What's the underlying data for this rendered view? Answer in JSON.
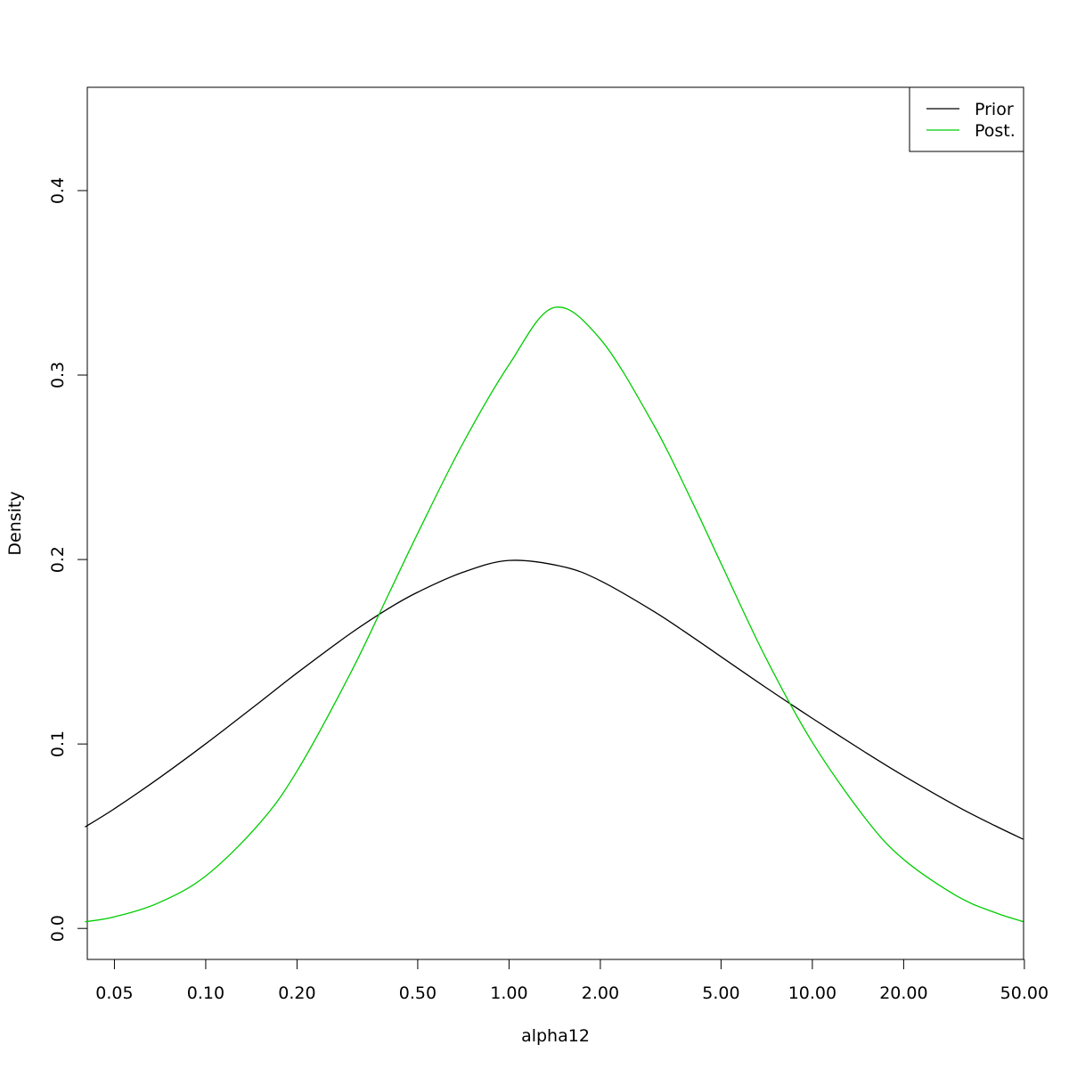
{
  "chart_data": {
    "type": "line",
    "title": "",
    "xlabel": "alpha12",
    "ylabel": "Density",
    "x_scale": "log",
    "xlim": [
      0.0407,
      49.7
    ],
    "ylim": [
      0,
      0.456
    ],
    "x_ticks": [
      0.05,
      0.1,
      0.2,
      0.5,
      1,
      2,
      5,
      10,
      20,
      50
    ],
    "x_tick_labels": [
      "0.05",
      "0.10",
      "0.20",
      "0.50",
      "1.00",
      "2.00",
      "5.00",
      "10.00",
      "20.00",
      "50.00"
    ],
    "y_ticks": [
      0,
      0.1,
      0.2,
      0.3,
      0.4
    ],
    "y_tick_labels": [
      "0.0",
      "0.1",
      "0.2",
      "0.3",
      "0.4"
    ],
    "grid": false,
    "legend_position": "top-right",
    "series": [
      {
        "name": "Prior",
        "color": "#000000",
        "x": [
          0.04,
          0.05,
          0.07,
          0.1,
          0.15,
          0.2,
          0.3,
          0.4,
          0.5,
          0.7,
          1,
          1.5,
          2,
          3,
          4,
          5,
          7,
          10,
          15,
          20,
          30,
          40,
          49.5
        ],
        "y": [
          0.055,
          0.0649,
          0.0814,
          0.1001,
          0.1224,
          0.1385,
          0.1599,
          0.1734,
          0.1823,
          0.1929,
          0.1995,
          0.1962,
          0.1885,
          0.1719,
          0.1583,
          0.1473,
          0.1308,
          0.1139,
          0.0953,
          0.0827,
          0.0662,
          0.0557,
          0.0484
        ]
      },
      {
        "name": "Post.",
        "color": "#00cd00",
        "x": [
          0.04,
          0.05,
          0.07,
          0.1,
          0.15,
          0.2,
          0.3,
          0.4,
          0.5,
          0.7,
          1,
          1.4,
          2,
          3,
          4,
          5,
          7,
          10,
          15,
          20,
          30,
          40,
          49.5
        ],
        "y": [
          0.0036,
          0.0063,
          0.0139,
          0.0284,
          0.0567,
          0.0853,
          0.1383,
          0.1809,
          0.2142,
          0.2621,
          0.3056,
          0.3365,
          0.3195,
          0.2729,
          0.2319,
          0.1979,
          0.1472,
          0.1009,
          0.0594,
          0.0374,
          0.0175,
          0.0086,
          0.0037
        ]
      }
    ]
  }
}
